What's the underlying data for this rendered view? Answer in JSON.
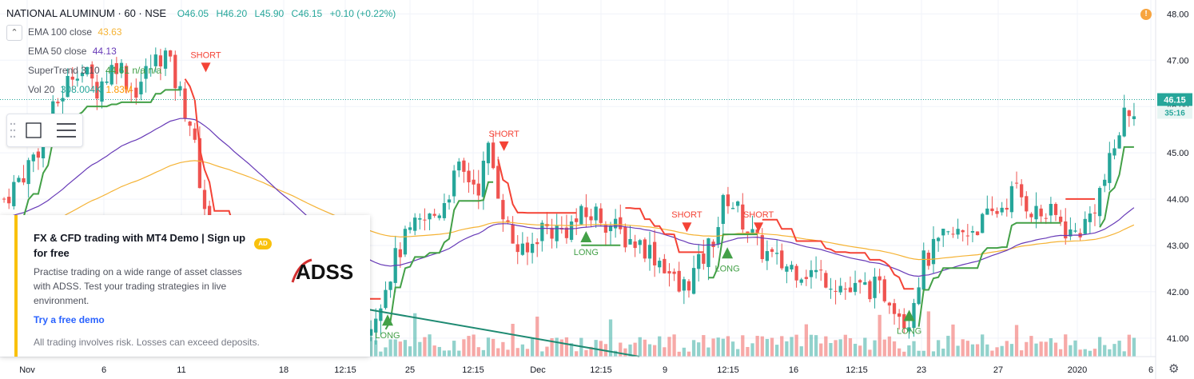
{
  "header": {
    "symbol": "NATIONAL ALUMINUM · 60 · NSE",
    "open": "O46.05",
    "high": "H46.20",
    "low": "L45.90",
    "close": "C46.15",
    "change": "+0.10 (+0.22%)"
  },
  "legend": {
    "ema100_label": "EMA 100 close",
    "ema100_value": "43.63",
    "ema50_label": "EMA 50 close",
    "ema50_value": "44.13",
    "supertrend_label": "SuperTrend 3 10",
    "supertrend_value": "44.61 n/a n/a",
    "volume_label": "Vol 20",
    "volume_value": "308.004K",
    "volume_ma": "1.83M"
  },
  "price_tag": {
    "value": "46.15",
    "countdown": "35:16"
  },
  "ad": {
    "title": "FX & CFD trading with MT4 Demo | Sign up for free",
    "badge": "AD",
    "brand": "ADSS",
    "description": "Practise trading on a wide range of asset classes with ADSS. Test your trading strategies in live environment.",
    "cta": "Try a free demo",
    "disclaimer": "All trading involves risk. Losses can exceed deposits."
  },
  "colors": {
    "up": "#26a69a",
    "down": "#ef5350",
    "ema100": "#f5b335",
    "ema50": "#673ab7",
    "st_up": "#43a047",
    "st_down": "#f44336",
    "trendline": "#1e8a72",
    "ad_accent": "#f9c10d"
  },
  "chart_data": {
    "type": "candlestick",
    "symbol": "NATIONAL ALUMINUM",
    "interval": "60",
    "exchange": "NSE",
    "ylim": [
      40.6,
      48.3
    ],
    "y_ticks": [
      41.0,
      42.0,
      43.0,
      44.0,
      45.0,
      46.0,
      47.0,
      48.0
    ],
    "x_ticks": [
      "Nov",
      "6",
      "11",
      "18",
      "12:15",
      "25",
      "12:15",
      "Dec",
      "12:15",
      "9",
      "12:15",
      "16",
      "12:15",
      "23",
      "27",
      "2020",
      "6"
    ],
    "last_price": 46.15,
    "price_path": [
      [
        0,
        44.0
      ],
      [
        0.02,
        44.6
      ],
      [
        0.035,
        45.2
      ],
      [
        0.05,
        46.0
      ],
      [
        0.07,
        46.9
      ],
      [
        0.09,
        46.4
      ],
      [
        0.11,
        47.0
      ],
      [
        0.125,
        46.3
      ],
      [
        0.14,
        46.8
      ],
      [
        0.155,
        47.2
      ],
      [
        0.17,
        46.3
      ],
      [
        0.18,
        45.7
      ],
      [
        0.19,
        44.4
      ],
      [
        0.2,
        43.2
      ],
      [
        0.215,
        42.9
      ],
      [
        0.24,
        42.4
      ],
      [
        0.27,
        41.9
      ],
      [
        0.3,
        41.4
      ],
      [
        0.33,
        41.25
      ],
      [
        0.355,
        41.3
      ],
      [
        0.37,
        42.2
      ],
      [
        0.385,
        43.0
      ],
      [
        0.4,
        43.4
      ],
      [
        0.42,
        43.7
      ],
      [
        0.44,
        44.6
      ],
      [
        0.46,
        44.3
      ],
      [
        0.47,
        45.1
      ],
      [
        0.48,
        44.1
      ],
      [
        0.49,
        43.2
      ],
      [
        0.505,
        42.7
      ],
      [
        0.52,
        43.4
      ],
      [
        0.54,
        43.3
      ],
      [
        0.56,
        43.6
      ],
      [
        0.575,
        43.7
      ],
      [
        0.6,
        43.2
      ],
      [
        0.62,
        43.0
      ],
      [
        0.64,
        42.6
      ],
      [
        0.655,
        42.0
      ],
      [
        0.675,
        42.6
      ],
      [
        0.69,
        43.3
      ],
      [
        0.7,
        44.1
      ],
      [
        0.715,
        43.6
      ],
      [
        0.73,
        43.0
      ],
      [
        0.75,
        42.6
      ],
      [
        0.77,
        42.5
      ],
      [
        0.8,
        42.3
      ],
      [
        0.82,
        42.0
      ],
      [
        0.84,
        42.1
      ],
      [
        0.86,
        41.9
      ],
      [
        0.875,
        41.3
      ],
      [
        0.89,
        42.6
      ],
      [
        0.91,
        43.1
      ],
      [
        0.93,
        43.3
      ],
      [
        0.95,
        43.5
      ],
      [
        0.965,
        43.8
      ],
      [
        0.98,
        44.2
      ],
      [
        1.0,
        43.7
      ],
      [
        1.02,
        43.6
      ],
      [
        1.035,
        43.2
      ],
      [
        1.05,
        43.5
      ],
      [
        1.07,
        44.6
      ],
      [
        1.085,
        45.8
      ],
      [
        1.1,
        46.15
      ]
    ],
    "signals": [
      {
        "label": "SHORT",
        "type": "short",
        "t": 0.195,
        "price": 47.05
      },
      {
        "label": "SHORT",
        "type": "short",
        "t": 0.482,
        "price": 45.35
      },
      {
        "label": "LONG",
        "type": "long",
        "t": 0.37,
        "price": 41.2
      },
      {
        "label": "LONG",
        "type": "long",
        "t": 0.561,
        "price": 43.0
      },
      {
        "label": "SHORT",
        "type": "short",
        "t": 0.658,
        "price": 43.6
      },
      {
        "label": "LONG",
        "type": "long",
        "t": 0.697,
        "price": 42.65
      },
      {
        "label": "SHORT",
        "type": "short",
        "t": 0.727,
        "price": 43.6
      },
      {
        "label": "LONG",
        "type": "long",
        "t": 0.872,
        "price": 41.3
      }
    ]
  }
}
